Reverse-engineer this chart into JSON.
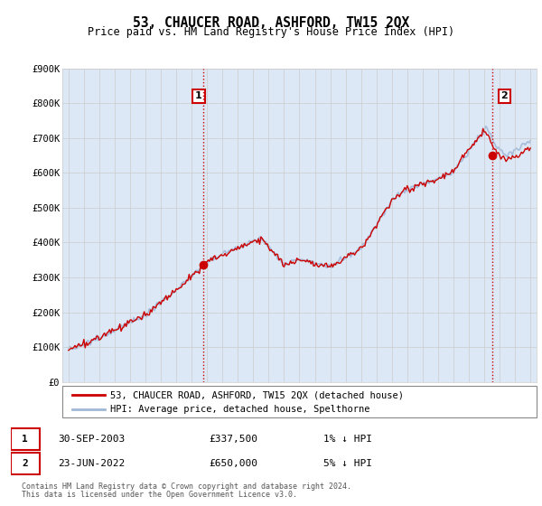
{
  "title": "53, CHAUCER ROAD, ASHFORD, TW15 2QX",
  "subtitle": "Price paid vs. HM Land Registry's House Price Index (HPI)",
  "ylim": [
    0,
    900000
  ],
  "yticks": [
    0,
    100000,
    200000,
    300000,
    400000,
    500000,
    600000,
    700000,
    800000,
    900000
  ],
  "ytick_labels": [
    "£0",
    "£100K",
    "£200K",
    "£300K",
    "£400K",
    "£500K",
    "£600K",
    "£700K",
    "£800K",
    "£900K"
  ],
  "hpi_color": "#a0b8d8",
  "price_color": "#cc0000",
  "vline_color": "#cc0000",
  "grid_color": "#cccccc",
  "chart_bg": "#dce8f5",
  "background_color": "#ffffff",
  "sale1_year": 2003.75,
  "sale1_price": 337500,
  "sale1_label": "1",
  "sale1_date": "30-SEP-2003",
  "sale1_amount": "£337,500",
  "sale1_pct": "1% ↓ HPI",
  "sale2_year": 2022.5,
  "sale2_price": 650000,
  "sale2_label": "2",
  "sale2_date": "23-JUN-2022",
  "sale2_amount": "£650,000",
  "sale2_pct": "5% ↓ HPI",
  "legend_line1": "53, CHAUCER ROAD, ASHFORD, TW15 2QX (detached house)",
  "legend_line2": "HPI: Average price, detached house, Spelthorne",
  "footer1": "Contains HM Land Registry data © Crown copyright and database right 2024.",
  "footer2": "This data is licensed under the Open Government Licence v3.0.",
  "start_year": 1995,
  "end_year": 2025
}
